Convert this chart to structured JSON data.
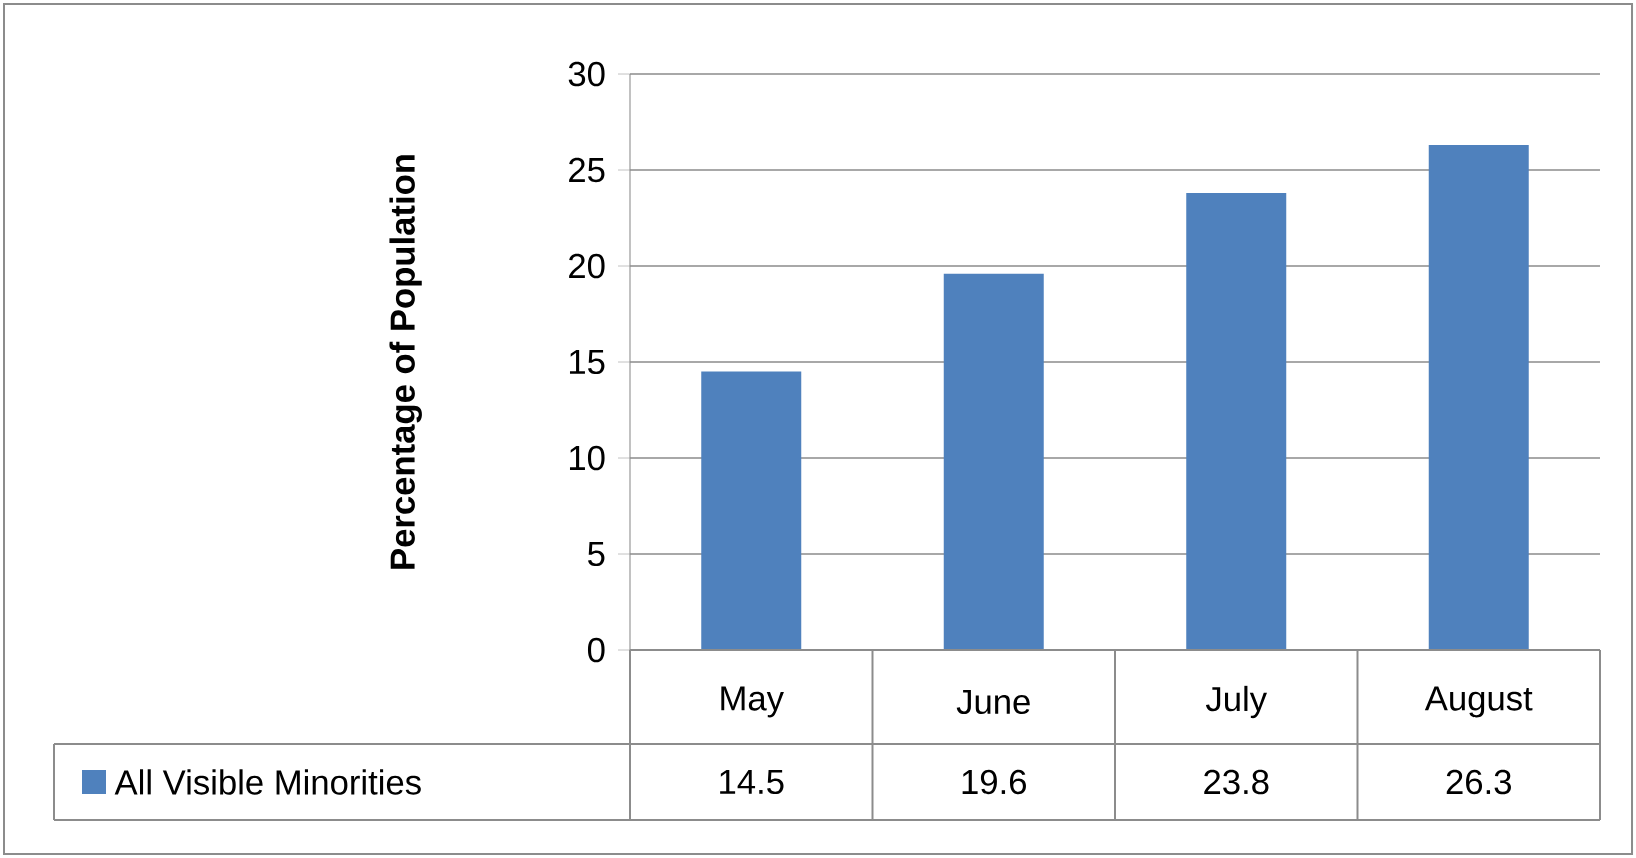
{
  "chart_data": {
    "type": "bar",
    "ylabel": "Percentage of Population",
    "categories": [
      "May",
      "June",
      "July",
      "August"
    ],
    "series": [
      {
        "name": "All Visible Minorities",
        "color": "#4f81bd",
        "values": [
          14.5,
          19.6,
          23.8,
          26.3
        ]
      }
    ],
    "ylim": [
      0,
      30
    ],
    "yticks": [
      0,
      5,
      10,
      15,
      20,
      25,
      30
    ],
    "grid": "y",
    "data_labels": true,
    "legend": "bottom"
  }
}
